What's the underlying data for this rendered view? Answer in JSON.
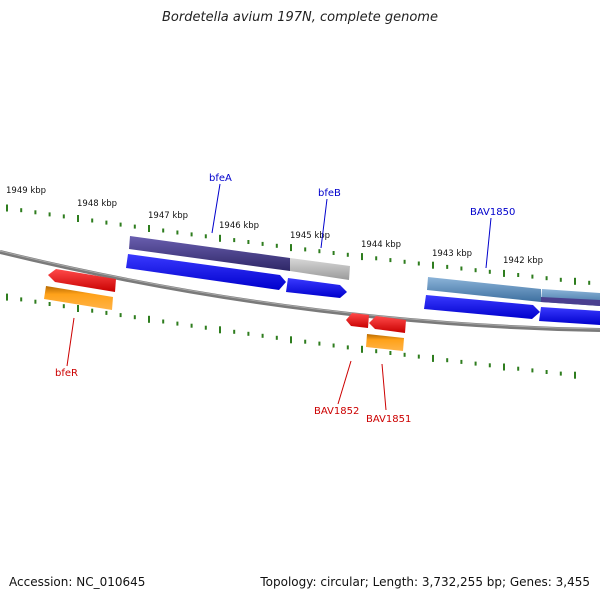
{
  "title": "Bordetella avium 197N, complete genome",
  "footer": {
    "accession": "Accession: NC_010645",
    "topology": "Topology: circular; Length: 3,732,255 bp; Genes: 3,455"
  },
  "colors": {
    "backbone": "#808080",
    "ticks": "#2e7d1e",
    "forward_label": "#0000cc",
    "reverse_label": "#cc0000",
    "cds_blue": "#0000ee",
    "gene_purple": "#4a3f8f",
    "gene_gray": "#b0b0b0",
    "gene_steel": "#5b8fbf",
    "gene_red": "#ee0000",
    "gene_orange": "#ff8c00"
  },
  "kbp_labels": [
    "1949 kbp",
    "1948 kbp",
    "1947 kbp",
    "1946 kbp",
    "1945 kbp",
    "1944 kbp",
    "1943 kbp",
    "1942 kbp"
  ],
  "genes": {
    "bfeA": "bfeA",
    "bfeB": "bfeB",
    "BAV1850": "BAV1850",
    "bfeR": "bfeR",
    "BAV1852": "BAV1852",
    "BAV1851": "BAV1851"
  }
}
